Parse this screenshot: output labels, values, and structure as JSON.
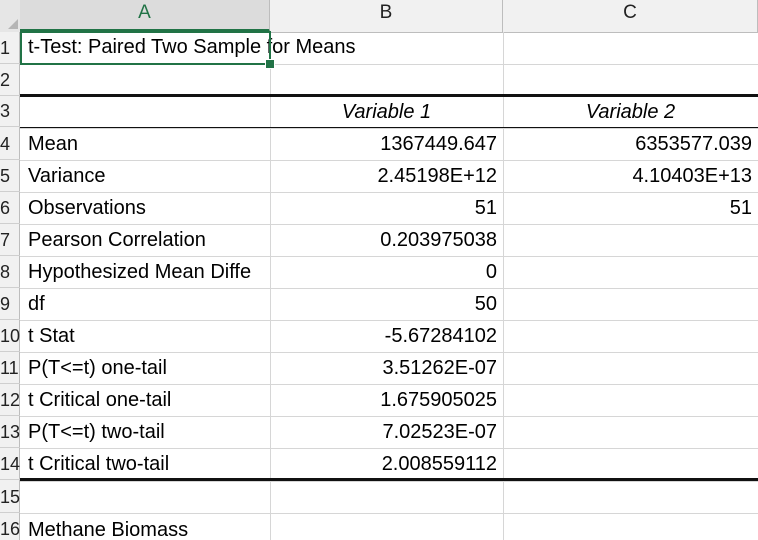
{
  "columns": [
    "A",
    "B",
    "C"
  ],
  "rows": [
    "1",
    "2",
    "3",
    "4",
    "5",
    "6",
    "7",
    "8",
    "9",
    "10",
    "11",
    "12",
    "13",
    "14",
    "15",
    "16"
  ],
  "title": "t-Test: Paired Two Sample for Means",
  "headers": {
    "var1": "Variable 1",
    "var2": "Variable 2"
  },
  "stats": [
    {
      "label": "Mean",
      "v1": "1367449.647",
      "v2": "6353577.039"
    },
    {
      "label": "Variance",
      "v1": "2.45198E+12",
      "v2": "4.10403E+13"
    },
    {
      "label": "Observations",
      "v1": "51",
      "v2": "51"
    },
    {
      "label": "Pearson Correlation",
      "v1": "0.203975038",
      "v2": ""
    },
    {
      "label": "Hypothesized Mean Diffe",
      "v1": "0",
      "v2": ""
    },
    {
      "label": "df",
      "v1": "50",
      "v2": ""
    },
    {
      "label": "t Stat",
      "v1": "-5.67284102",
      "v2": ""
    },
    {
      "label": "P(T<=t) one-tail",
      "v1": "3.51262E-07",
      "v2": ""
    },
    {
      "label": "t Critical one-tail",
      "v1": "1.675905025",
      "v2": ""
    },
    {
      "label": "P(T<=t) two-tail",
      "v1": "7.02523E-07",
      "v2": ""
    },
    {
      "label": "t Critical two-tail",
      "v1": "2.008559112",
      "v2": ""
    }
  ],
  "row16_label": "Methane Biomass",
  "selected_cell": "A1",
  "accent_color": "#217346"
}
